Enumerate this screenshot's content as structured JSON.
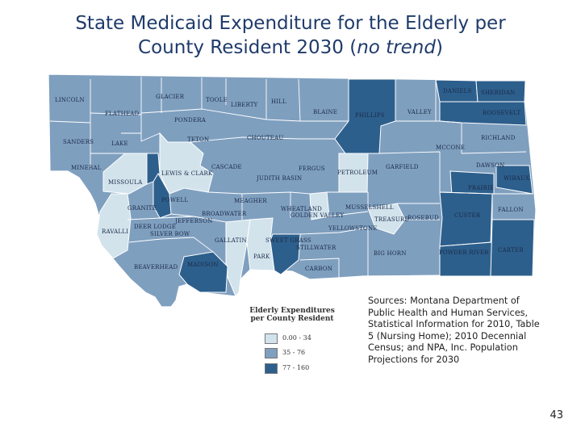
{
  "title": {
    "line1": "State Medicaid Expenditure for the Elderly per",
    "line2_prefix": "County Resident 2030 (",
    "line2_italic": "no trend",
    "line2_suffix": ")"
  },
  "colors": {
    "light": "#d2e3ec",
    "medium": "#7f9fbf",
    "dark": "#2d5f8c",
    "border": "#ffffff"
  },
  "legend": {
    "title_line1": "Elderly Expenditures",
    "title_line2": "per County Resident",
    "classes": [
      {
        "label": "0.00 - 34",
        "color": "#d2e3ec"
      },
      {
        "label": "35 - 76",
        "color": "#7f9fbf"
      },
      {
        "label": "77 - 160",
        "color": "#2d5f8c"
      }
    ]
  },
  "counties": {
    "lincoln": "LINCOLN",
    "glacier": "GLACIER",
    "toole": "TOOLE",
    "liberty": "LIBERTY",
    "hill": "HILL",
    "blaine": "BLAINE",
    "phillips": "PHILLIPS",
    "valley": "VALLEY",
    "daniels": "DANIELS",
    "sheridan": "SHERIDAN",
    "roosevelt": "ROOSEVELT",
    "flathead": "FLATHEAD",
    "pondera": "PONDERA",
    "teton": "TETON",
    "chouteau": "CHOUTEAU",
    "richland": "RICHLAND",
    "mccone": "MCCONE",
    "sanders": "SANDERS",
    "lake": "LAKE",
    "cascade": "CASCADE",
    "fergus": "FERGUS",
    "garfield": "GARFIELD",
    "dawson": "DAWSON",
    "mineral": "MINERAL",
    "missoula": "MISSOULA",
    "lewis_clark": "LEWIS & CLARK",
    "judith_basin": "JUDITH BASIN",
    "petroleum": "PETROLEUM",
    "wibaux": "WIBAUX",
    "prairie": "PRAIRIE",
    "powell": "POWELL",
    "meagher": "MEAGHER",
    "granite": "GRANITE",
    "broadwater": "BROADWATER",
    "wheatland": "WHEATLAND",
    "golden_valley": "GOLDEN VALLEY",
    "musselshell": "MUSSELSHELL",
    "custer": "CUSTER",
    "fallon": "FALLON",
    "jefferson": "JEFFERSON",
    "deer_lodge": "DEER LODGE",
    "treasure": "TREASURE",
    "rosebud": "ROSEBUD",
    "ravalli": "RAVALLI",
    "silver_bow": "SILVER BOW",
    "yellowstone": "YELLOWSTONE",
    "gallatin": "GALLATIN",
    "sweet_grass": "SWEET GRASS",
    "stillwater": "STILLWATER",
    "park": "PARK",
    "big_horn": "BIG HORN",
    "powder_river": "POWDER RIVER",
    "carter": "CARTER",
    "beaverhead": "BEAVERHEAD",
    "madison": "MADISON",
    "carbon": "CARBON"
  },
  "sources": "Sources:  Montana Department of Public Health and Human Services, Statistical Information for 2010, Table 5 (Nursing Home); 2010 Decennial Census; and NPA, Inc. Population Projections for 2030",
  "page_number": "43"
}
